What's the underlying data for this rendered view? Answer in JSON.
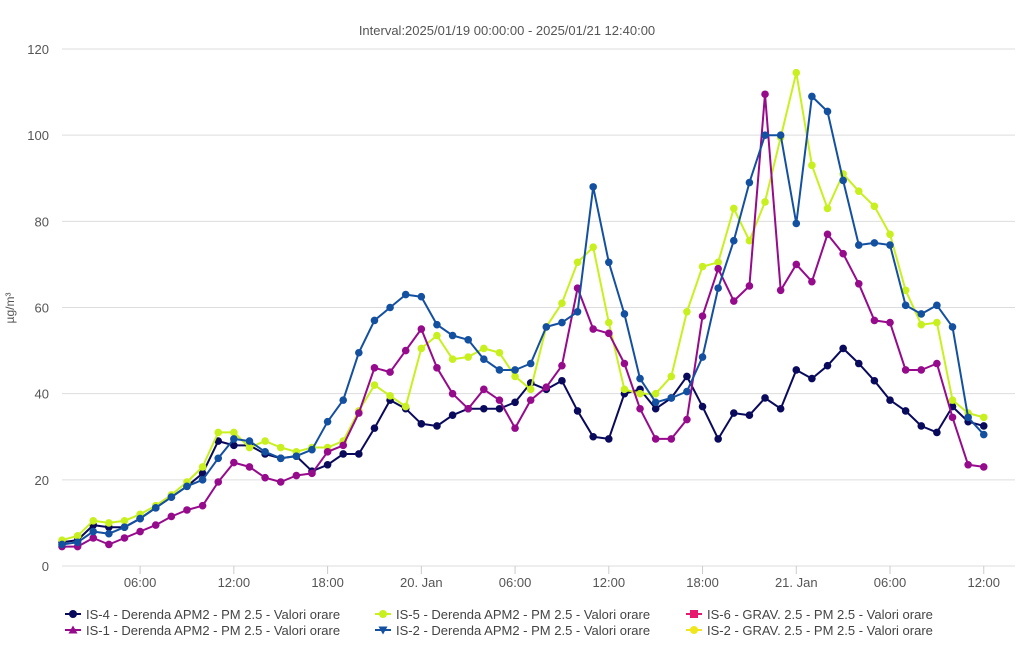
{
  "chart_data": {
    "type": "line",
    "title": "Interval:2025/01/19 00:00:00 - 2025/01/21 12:40:00",
    "ylabel": "µg/m³",
    "xlabel": "",
    "ylim": [
      0,
      120
    ],
    "y_ticks": [
      0,
      20,
      40,
      60,
      80,
      100,
      120
    ],
    "x_unit": "hours since 2025/01/19 00:00",
    "x_range": [
      1,
      62
    ],
    "x_ticks": [
      {
        "x": 6,
        "label": "06:00"
      },
      {
        "x": 12,
        "label": "12:00"
      },
      {
        "x": 18,
        "label": "18:00"
      },
      {
        "x": 24,
        "label": "20. Jan"
      },
      {
        "x": 30,
        "label": "06:00"
      },
      {
        "x": 36,
        "label": "12:00"
      },
      {
        "x": 42,
        "label": "18:00"
      },
      {
        "x": 48,
        "label": "21. Jan"
      },
      {
        "x": 54,
        "label": "06:00"
      },
      {
        "x": 60,
        "label": "12:00"
      }
    ],
    "grid": true,
    "legend_position": "bottom",
    "x": [
      1,
      2,
      3,
      4,
      5,
      6,
      7,
      8,
      9,
      10,
      11,
      12,
      13,
      14,
      15,
      16,
      17,
      18,
      19,
      20,
      21,
      22,
      23,
      24,
      25,
      26,
      27,
      28,
      29,
      30,
      31,
      32,
      33,
      34,
      35,
      36,
      37,
      38,
      39,
      40,
      41,
      42,
      43,
      44,
      45,
      46,
      47,
      48,
      49,
      50,
      51,
      52,
      53,
      54,
      55,
      56,
      57,
      58,
      59,
      60,
      61
    ],
    "series": [
      {
        "name": "IS-4 - Derenda APM2 - PM 2.5 - Valori orare",
        "color": "#0a0a5c",
        "marker": "circle",
        "values": [
          5.5,
          6,
          9.5,
          9,
          9,
          11,
          13.5,
          16,
          18.5,
          21.5,
          29,
          28,
          28,
          26,
          25,
          25.5,
          22,
          23.5,
          26,
          26,
          32,
          38.5,
          36.5,
          33,
          32.5,
          35,
          36.5,
          36.5,
          36.5,
          38,
          42.5,
          41,
          43,
          36,
          30,
          29.5,
          40,
          41,
          36.5,
          39,
          44,
          37,
          29.5,
          35.5,
          35,
          39,
          36.5,
          45.5,
          43.5,
          46.5,
          50.5,
          47,
          43,
          38.5,
          36,
          32.5,
          31,
          37,
          33.5,
          32.5,
          null
        ]
      },
      {
        "name": "IS-5 - Derenda APM2 - PM 2.5 - Valori orare",
        "color": "#c8f01e",
        "marker": "circle",
        "values": [
          6,
          7,
          10.5,
          10,
          10.5,
          12,
          14,
          16.5,
          19.5,
          23,
          31,
          31,
          27.5,
          29,
          27.5,
          26.5,
          27.5,
          27.5,
          29,
          36,
          42,
          39.5,
          37,
          50.5,
          53.5,
          48,
          48.5,
          50.5,
          49.5,
          44,
          41,
          55.5,
          61,
          70.5,
          74,
          56.5,
          41,
          40,
          40,
          44,
          59,
          69.5,
          70.5,
          83,
          75.5,
          84.5,
          99.5,
          114.5,
          93,
          83,
          91,
          87,
          83.5,
          77,
          64,
          56,
          56.5,
          38.5,
          35.5,
          34.5,
          null
        ]
      },
      {
        "name": "IS-6 - GRAV. 2.5 - PM 2.5 - Valori orare",
        "color": "#e6196e",
        "marker": "square",
        "values": [
          null,
          null,
          null,
          null,
          null,
          null,
          null,
          null,
          null,
          null,
          null,
          null,
          null,
          null,
          null,
          null,
          null,
          null,
          null,
          null,
          null,
          null,
          null,
          null,
          null,
          null,
          null,
          null,
          null,
          null,
          null,
          null,
          null,
          null,
          null,
          null,
          null,
          null,
          null,
          null,
          null,
          null,
          null,
          null,
          null,
          null,
          null,
          null,
          null,
          null,
          null,
          null,
          null,
          null,
          null,
          null,
          null,
          null,
          null,
          null,
          null
        ]
      },
      {
        "name": "IS-1 - Derenda APM2 - PM 2.5 - Valori orare",
        "color": "#960a8c",
        "marker": "triangle",
        "values": [
          4.5,
          4.5,
          6.5,
          5,
          6.5,
          8,
          9.5,
          11.5,
          13,
          14,
          19.5,
          24,
          23,
          20.5,
          19.5,
          21,
          21.5,
          26.5,
          28,
          35.5,
          46,
          45,
          50,
          55,
          46,
          40,
          36.5,
          41,
          38.5,
          32,
          38.5,
          41.5,
          46.5,
          64.5,
          55,
          54,
          47,
          36.5,
          29.5,
          29.5,
          34,
          58,
          69,
          61.5,
          65,
          109.5,
          64,
          70,
          66,
          77,
          72.5,
          65.5,
          57,
          56.5,
          45.5,
          45.5,
          47,
          34.5,
          23.5,
          23,
          null
        ]
      },
      {
        "name": "IS-2 - Derenda APM2 - PM 2.5 - Valori orare",
        "color": "#1450a0",
        "marker": "triangle-down",
        "values": [
          5,
          5.5,
          8,
          7.5,
          9,
          11,
          13.5,
          16,
          18.5,
          20,
          25,
          29.5,
          29,
          26.5,
          25,
          25.5,
          27,
          33.5,
          38.5,
          49.5,
          57,
          60,
          63,
          62.5,
          56,
          53.5,
          52.5,
          48,
          45.5,
          45.5,
          47,
          55.5,
          56.5,
          59,
          88,
          70.5,
          58.5,
          43.5,
          38,
          39,
          40.5,
          48.5,
          64.5,
          75.5,
          89,
          100,
          100,
          79.5,
          109,
          105.5,
          89.5,
          74.5,
          75,
          74.5,
          60.5,
          58.5,
          60.5,
          55.5,
          34.5,
          30.5,
          null
        ]
      },
      {
        "name": "IS-2 - GRAV. 2.5 - PM 2.5 - Valori orare",
        "color": "#f0e61e",
        "marker": "circle",
        "values": [
          null,
          null,
          null,
          null,
          null,
          null,
          null,
          null,
          null,
          null,
          null,
          null,
          null,
          null,
          null,
          null,
          null,
          null,
          null,
          null,
          null,
          null,
          null,
          null,
          null,
          null,
          null,
          null,
          null,
          null,
          null,
          null,
          null,
          null,
          null,
          null,
          null,
          null,
          null,
          null,
          null,
          null,
          null,
          null,
          null,
          null,
          null,
          null,
          null,
          null,
          null,
          null,
          null,
          null,
          null,
          null,
          null,
          null,
          null,
          null,
          null
        ]
      }
    ]
  }
}
